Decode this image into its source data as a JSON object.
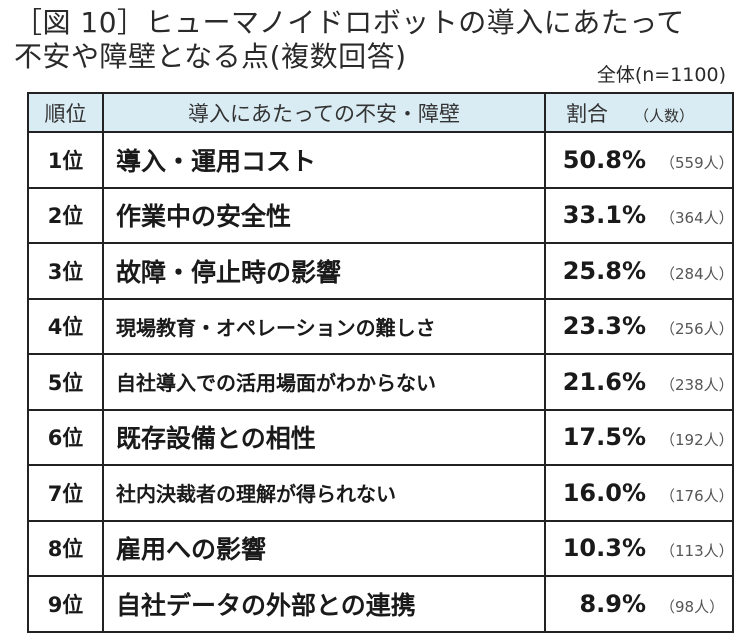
{
  "title": {
    "line1": "［図 10］ヒューマノイドロボットの導入にあたって",
    "line2": "不安や障壁となる点(複数回答)"
  },
  "sample": "全体(n=1100)",
  "table": {
    "headers": {
      "rank": "順位",
      "item": "導入にあたっての不安・障壁",
      "pct": "割合",
      "count": "（人数）"
    },
    "rows": [
      {
        "rank": "1位",
        "item": "導入・運用コスト",
        "pct": "50.8%",
        "count": "（559人）"
      },
      {
        "rank": "2位",
        "item": "作業中の安全性",
        "pct": "33.1%",
        "count": "（364人）"
      },
      {
        "rank": "3位",
        "item": "故障・停止時の影響",
        "pct": "25.8%",
        "count": "（284人）"
      },
      {
        "rank": "4位",
        "item": "現場教育・オペレーションの難しさ",
        "pct": "23.3%",
        "count": "（256人）"
      },
      {
        "rank": "5位",
        "item": "自社導入での活用場面がわからない",
        "pct": "21.6%",
        "count": "（238人）"
      },
      {
        "rank": "6位",
        "item": "既存設備との相性",
        "pct": "17.5%",
        "count": "（192人）"
      },
      {
        "rank": "7位",
        "item": "社内決裁者の理解が得られない",
        "pct": "16.0%",
        "count": "（176人）"
      },
      {
        "rank": "8位",
        "item": "雇用への影響",
        "pct": "10.3%",
        "count": "（113人）"
      },
      {
        "rank": "9位",
        "item": "自社データの外部との連携",
        "pct": "8.9%",
        "count": "（98人）"
      }
    ]
  },
  "colors": {
    "header_bg": "#d9ecf4",
    "border": "#222222"
  }
}
